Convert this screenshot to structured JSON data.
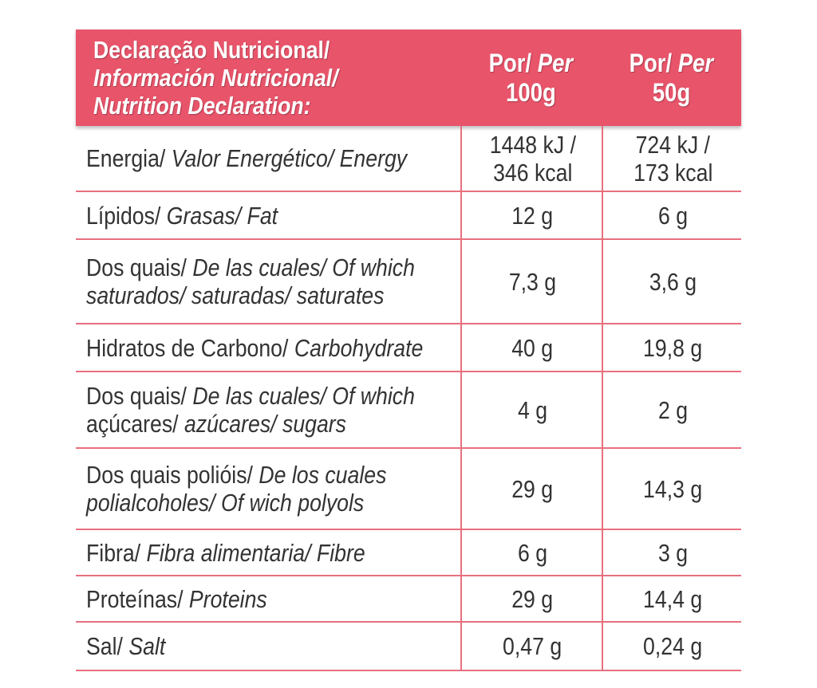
{
  "header": {
    "title_lines": [
      {
        "text": "Declaração Nutricional/",
        "italic": false
      },
      {
        "text": "Información Nutricional/",
        "italic": true
      },
      {
        "text": "Nutrition Declaration:",
        "italic": true
      }
    ],
    "col1": {
      "por": "Por/ ",
      "per": "Per",
      "amount": "100g"
    },
    "col2": {
      "por": "Por/ ",
      "per": "Per",
      "amount": "50g"
    }
  },
  "rows": [
    {
      "label": [
        [
          {
            "text": "Energia/ ",
            "italic": false
          },
          {
            "text": "Valor Energético/ Energy",
            "italic": true
          }
        ]
      ],
      "v100": [
        "1448 kJ /",
        "346 kcal"
      ],
      "v50": [
        "724 kJ /",
        "173 kcal"
      ]
    },
    {
      "label": [
        [
          {
            "text": "Lípidos/ ",
            "italic": false
          },
          {
            "text": "Grasas/ Fat",
            "italic": true
          }
        ]
      ],
      "v100": [
        "12 g"
      ],
      "v50": [
        "6 g"
      ]
    },
    {
      "label": [
        [
          {
            "text": "Dos quais/ ",
            "italic": false
          },
          {
            "text": "De las cuales/ Of which",
            "italic": true
          }
        ],
        [
          {
            "text": "saturados/ saturadas/ saturates",
            "italic": true
          }
        ]
      ],
      "v100": [
        "7,3 g"
      ],
      "v50": [
        "3,6 g"
      ]
    },
    {
      "label": [
        [
          {
            "text": "Hidratos de Carbono/ ",
            "italic": false
          },
          {
            "text": "Carbohydrate",
            "italic": true
          }
        ]
      ],
      "v100": [
        "40 g"
      ],
      "v50": [
        "19,8 g"
      ]
    },
    {
      "label": [
        [
          {
            "text": "Dos quais/ ",
            "italic": false
          },
          {
            "text": "De las cuales/ Of which",
            "italic": true
          }
        ],
        [
          {
            "text": "açúcares/ ",
            "italic": false
          },
          {
            "text": "azúcares/ sugars",
            "italic": true
          }
        ]
      ],
      "v100": [
        "4 g"
      ],
      "v50": [
        "2 g"
      ]
    },
    {
      "label": [
        [
          {
            "text": "Dos quais polióis/ ",
            "italic": false
          },
          {
            "text": "De los cuales",
            "italic": true
          }
        ],
        [
          {
            "text": "polialcoholes/ Of wich polyols",
            "italic": true
          }
        ]
      ],
      "v100": [
        "29 g"
      ],
      "v50": [
        "14,3 g"
      ]
    },
    {
      "label": [
        [
          {
            "text": "Fibra/ ",
            "italic": false
          },
          {
            "text": "Fibra alimentaria/ Fibre",
            "italic": true
          }
        ]
      ],
      "v100": [
        "6 g"
      ],
      "v50": [
        "3 g"
      ]
    },
    {
      "label": [
        [
          {
            "text": "Proteínas/ ",
            "italic": false
          },
          {
            "text": "Proteins",
            "italic": true
          }
        ]
      ],
      "v100": [
        "29 g"
      ],
      "v50": [
        "14,4 g"
      ]
    },
    {
      "label": [
        [
          {
            "text": "Sal/ ",
            "italic": false
          },
          {
            "text": "Salt",
            "italic": true
          }
        ]
      ],
      "v100": [
        "0,47 g"
      ],
      "v50": [
        "0,24 g"
      ]
    }
  ],
  "colors": {
    "header_bg": "#E8546A",
    "rule": "#E8707F",
    "text": "#333333"
  }
}
